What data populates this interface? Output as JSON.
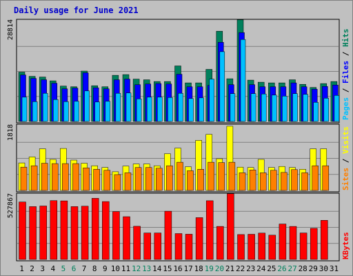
{
  "colors": {
    "background": "#c0c0c0",
    "border": "#808080",
    "grid": "#808080",
    "hits": "#00805c",
    "files": "#0000ff",
    "pages": "#00c0ff",
    "visits": "#ffff00",
    "sites": "#ff8000",
    "kbytes": "#ff0000",
    "weekday_text": "#000000",
    "weekend_text": "#00805c",
    "title": "#0000cc"
  },
  "chart_data": [
    {
      "type": "bar",
      "title": "Daily usage for June 2021",
      "ymax_label": "28814",
      "ymax": 28814,
      "right_label": [
        {
          "text": "Pages",
          "color": "#00c0ff"
        },
        {
          "text": " / ",
          "color": "#000000"
        },
        {
          "text": "Files",
          "color": "#0000ff"
        },
        {
          "text": " / ",
          "color": "#000000"
        },
        {
          "text": "Hits",
          "color": "#00805c"
        }
      ],
      "categories": [
        "1",
        "2",
        "3",
        "4",
        "5",
        "6",
        "7",
        "8",
        "9",
        "10",
        "11",
        "12",
        "13",
        "14",
        "15",
        "16",
        "17",
        "18",
        "19",
        "20",
        "21",
        "22",
        "23",
        "24",
        "25",
        "26",
        "27",
        "28",
        "29",
        "30",
        "31"
      ],
      "series": [
        {
          "name": "Hits",
          "color": "#00805c",
          "values": [
            14200,
            13000,
            12800,
            11700,
            10200,
            10000,
            14500,
            10300,
            10000,
            13300,
            13500,
            12200,
            12000,
            11500,
            11500,
            16000,
            11100,
            11100,
            15000,
            26000,
            12300,
            29300,
            11900,
            11300,
            11100,
            11100,
            12000,
            10700,
            9800,
            10900,
            11500
          ]
        },
        {
          "name": "Files",
          "color": "#0000ff",
          "values": [
            13400,
            12400,
            12000,
            11000,
            9400,
            9600,
            14000,
            9700,
            9400,
            12000,
            12200,
            10600,
            10800,
            10900,
            10800,
            13600,
            10000,
            10000,
            10400,
            22800,
            10600,
            25600,
            10600,
            10000,
            10000,
            10000,
            11100,
            10000,
            9300,
            10100,
            10500
          ]
        },
        {
          "name": "Pages",
          "color": "#00c0ff",
          "values": [
            7000,
            5700,
            8100,
            6300,
            5700,
            5800,
            8800,
            5600,
            5800,
            8100,
            8200,
            6500,
            7000,
            7000,
            6900,
            8100,
            6600,
            6800,
            12200,
            20100,
            8000,
            23600,
            8000,
            7900,
            7600,
            7300,
            8000,
            7800,
            5500,
            6700,
            7500
          ]
        }
      ]
    },
    {
      "type": "bar",
      "ymax_label": "1818",
      "ymax": 1818,
      "right_label": [
        {
          "text": "Sites",
          "color": "#ff8000"
        },
        {
          "text": " / ",
          "color": "#000000"
        },
        {
          "text": "Visits",
          "color": "#ffff00"
        }
      ],
      "categories": [
        "1",
        "2",
        "3",
        "4",
        "5",
        "6",
        "7",
        "8",
        "9",
        "10",
        "11",
        "12",
        "13",
        "14",
        "15",
        "16",
        "17",
        "18",
        "19",
        "20",
        "21",
        "22",
        "23",
        "24",
        "25",
        "26",
        "27",
        "28",
        "29",
        "30",
        "31"
      ],
      "series": [
        {
          "name": "Visits",
          "color": "#ffff00",
          "values": [
            780,
            950,
            1180,
            880,
            1190,
            860,
            770,
            700,
            650,
            530,
            690,
            750,
            750,
            700,
            1040,
            1200,
            670,
            1420,
            1590,
            900,
            1820,
            660,
            650,
            880,
            650,
            680,
            650,
            600,
            1180,
            1180,
            0
          ]
        },
        {
          "name": "Sites",
          "color": "#ff8000",
          "values": [
            660,
            700,
            770,
            760,
            760,
            760,
            640,
            600,
            570,
            450,
            500,
            650,
            650,
            630,
            700,
            800,
            560,
            600,
            800,
            790,
            800,
            500,
            580,
            500,
            570,
            510,
            590,
            500,
            700,
            700,
            0
          ]
        }
      ]
    },
    {
      "type": "bar",
      "ymax_label": "527867",
      "ymax": 527867,
      "right_label": [
        {
          "text": "KBytes",
          "color": "#ff0000"
        }
      ],
      "categories": [
        "1",
        "2",
        "3",
        "4",
        "5",
        "6",
        "7",
        "8",
        "9",
        "10",
        "11",
        "12",
        "13",
        "14",
        "15",
        "16",
        "17",
        "18",
        "19",
        "20",
        "21",
        "22",
        "23",
        "24",
        "25",
        "26",
        "27",
        "28",
        "29",
        "30",
        "31"
      ],
      "series": [
        {
          "name": "KBytes",
          "color": "#ff0000",
          "values": [
            473000,
            435000,
            440000,
            484000,
            482000,
            435000,
            438000,
            503000,
            476000,
            394000,
            352000,
            273000,
            218000,
            218000,
            397000,
            213000,
            208000,
            344000,
            483000,
            272000,
            541000,
            205000,
            207000,
            217000,
            200000,
            292000,
            272000,
            218000,
            256000,
            322000,
            0
          ]
        }
      ]
    }
  ],
  "weekend_days": [
    "5",
    "6",
    "12",
    "13",
    "19",
    "20",
    "26",
    "27"
  ]
}
